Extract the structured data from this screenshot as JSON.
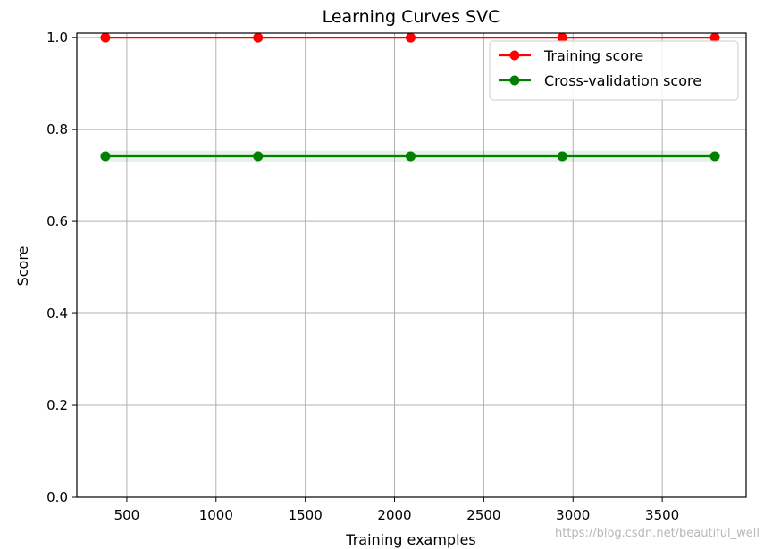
{
  "chart_data": {
    "type": "line",
    "title": "Learning Curves  SVC",
    "xlabel": "Training examples",
    "ylabel": "Score",
    "xlim": [
      220,
      3970
    ],
    "ylim": [
      0.0,
      1.01
    ],
    "xticks": [
      500,
      1000,
      1500,
      2000,
      2500,
      3000,
      3500
    ],
    "xtick_labels": [
      "500",
      "1000",
      "1500",
      "2000",
      "2500",
      "3000",
      "3500"
    ],
    "yticks": [
      0.0,
      0.2,
      0.4,
      0.6,
      0.8,
      1.0
    ],
    "ytick_labels": [
      "0.0",
      "0.2",
      "0.4",
      "0.6",
      "0.8",
      "1.0"
    ],
    "grid": true,
    "legend_position": "top-right",
    "x": [
      380,
      1235,
      2090,
      2940,
      3795
    ],
    "series": [
      {
        "name": "Training score",
        "color": "#ff0000",
        "marker": "circle",
        "values": [
          1.0,
          1.0,
          1.0,
          1.0,
          1.0
        ],
        "band": [
          0.0,
          0.0,
          0.0,
          0.0,
          0.0
        ]
      },
      {
        "name": "Cross-validation score",
        "color": "#008000",
        "marker": "circle",
        "values": [
          0.742,
          0.742,
          0.742,
          0.742,
          0.742
        ],
        "band": [
          0.012,
          0.012,
          0.012,
          0.012,
          0.012
        ]
      }
    ]
  },
  "watermark": "https://blog.csdn.net/beautiful_well"
}
